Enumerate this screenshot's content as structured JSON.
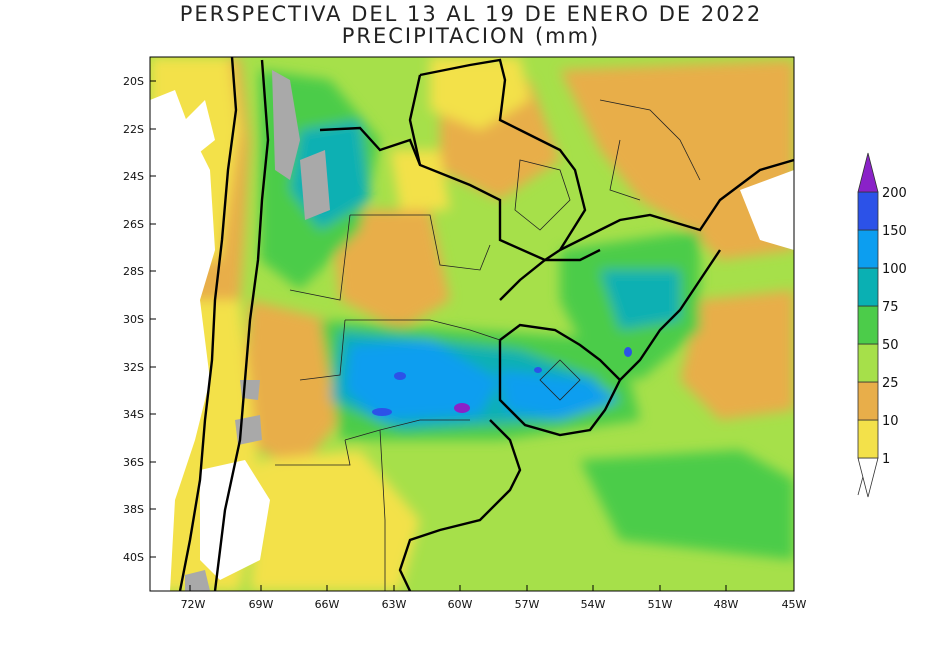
{
  "title": "PERSPECTIVA DEL 13 AL 19 DE ENERO DE 2022",
  "subtitle": "PRECIPITACION (mm)",
  "lat_labels": [
    "20S",
    "22S",
    "24S",
    "26S",
    "28S",
    "30S",
    "32S",
    "34S",
    "36S",
    "38S",
    "40S"
  ],
  "lon_labels": [
    "72W",
    "69W",
    "66W",
    "63W",
    "60W",
    "57W",
    "54W",
    "51W",
    "48W",
    "45W"
  ],
  "legend": {
    "levels": [
      "1",
      "10",
      "25",
      "50",
      "75",
      "100",
      "150",
      "200"
    ],
    "colors": [
      "#ffffff",
      "#f3e14a",
      "#e8ae4a",
      "#a6e04a",
      "#4ccc4a",
      "#0ab0b3",
      "#0c9ef0",
      "#2c52e8",
      "#8a22c8"
    ]
  }
}
